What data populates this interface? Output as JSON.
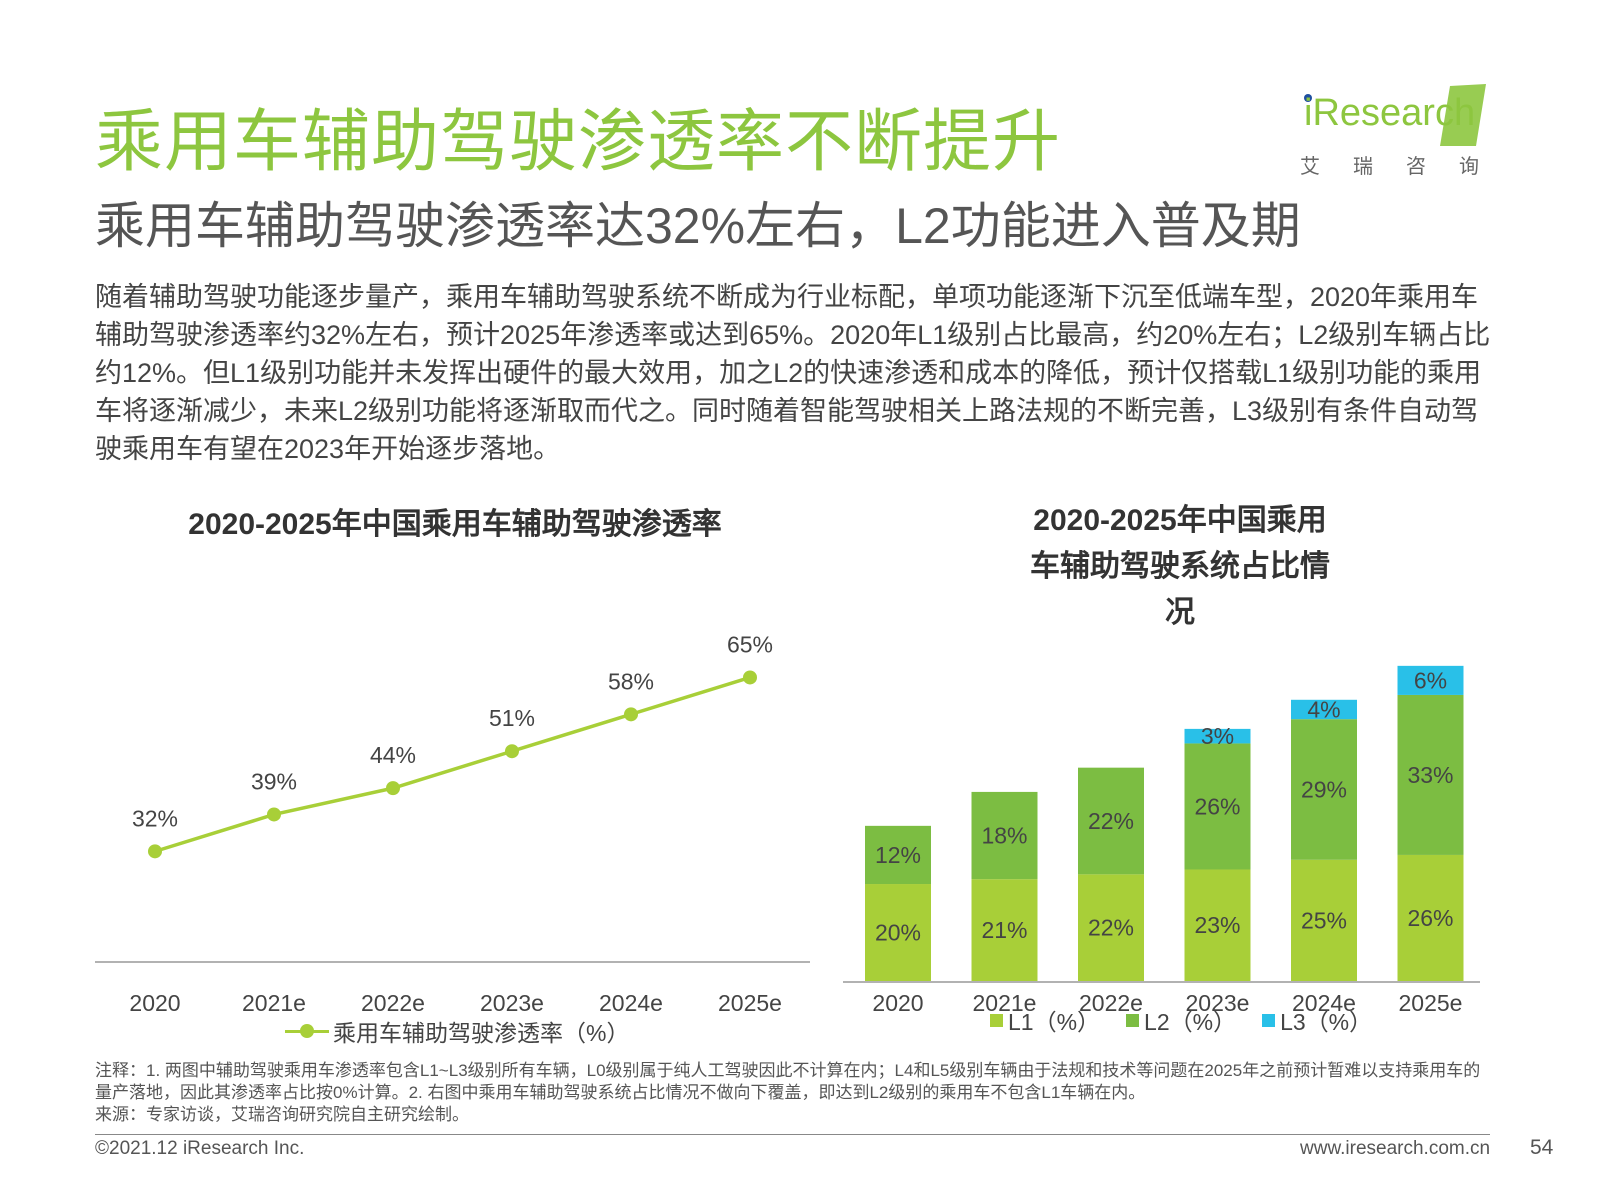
{
  "header": {
    "title": "乘用车辅助驾驶渗透率不断提升",
    "subtitle": "乘用车辅助驾驶渗透率达32%左右，L2功能进入普及期",
    "intro": "随着辅助驾驶功能逐步量产，乘用车辅助驾驶系统不断成为行业标配，单项功能逐渐下沉至低端车型，2020年乘用车辅助驾驶渗透率约32%左右，预计2025年渗透率或达到65%。2020年L1级别占比最高，约20%左右；L2级别车辆占比约12%。但L1级别功能并未发挥出硬件的最大效用，加之L2的快速渗透和成本的降低，预计仅搭载L1级别功能的乘用车将逐渐减少，未来L2级别功能将逐渐取而代之。同时随着智能驾驶相关上路法规的不断完善，L3级别有条件自动驾驶乘用车有望在2023年开始逐步落地。"
  },
  "logo": {
    "wordmark": "iResearch",
    "cn": "艾瑞咨询",
    "color": "#8dc63f"
  },
  "chart_data": [
    {
      "type": "line",
      "title": "2020-2025年中国乘用车辅助驾驶渗透率",
      "x": [
        "2020",
        "2021e",
        "2022e",
        "2023e",
        "2024e",
        "2025e"
      ],
      "series": [
        {
          "name": "乘用车辅助驾驶渗透率（%）",
          "values": [
            32,
            39,
            44,
            51,
            58,
            65
          ],
          "labels": [
            "32%",
            "39%",
            "44%",
            "51%",
            "58%",
            "65%"
          ],
          "color": "#a8cf38"
        }
      ],
      "ylim": [
        0,
        100
      ],
      "grid": false,
      "legend": "bottom"
    },
    {
      "type": "bar",
      "stacked": true,
      "title": "2020-2025年中国乘用车辅助驾驶系统占比情况",
      "categories": [
        "2020",
        "2021e",
        "2022e",
        "2023e",
        "2024e",
        "2025e"
      ],
      "series": [
        {
          "name": "L1（%）",
          "values": [
            20,
            21,
            22,
            23,
            25,
            26
          ],
          "labels": [
            "20%",
            "21%",
            "22%",
            "23%",
            "25%",
            "26%"
          ],
          "color": "#a8cf38"
        },
        {
          "name": "L2（%）",
          "values": [
            12,
            18,
            22,
            26,
            29,
            33
          ],
          "labels": [
            "12%",
            "18%",
            "22%",
            "26%",
            "29%",
            "33%"
          ],
          "color": "#7cbd42"
        },
        {
          "name": "L3（%）",
          "values": [
            0,
            0,
            0,
            3,
            4,
            6
          ],
          "labels": [
            "",
            "",
            "",
            "3%",
            "4%",
            "6%"
          ],
          "color": "#29c0e8"
        }
      ],
      "ylim": [
        0,
        66
      ],
      "grid": false,
      "legend": "bottom"
    }
  ],
  "notes": "注释：1. 两图中辅助驾驶乘用车渗透率包含L1~L3级别所有车辆，L0级别属于纯人工驾驶因此不计算在内；L4和L5级别车辆由于法规和技术等问题在2025年之前预计暂难以支持乘用车的量产落地，因此其渗透率占比按0%计算。2. 右图中乘用车辅助驾驶系统占比情况不做向下覆盖，即达到L2级别的乘用车不包含L1车辆在内。",
  "source": "来源：专家访谈，艾瑞咨询研究院自主研究绘制。",
  "footer": {
    "copyright": "©2021.12 iResearch Inc.",
    "website": "www.iresearch.com.cn",
    "page": "54"
  }
}
